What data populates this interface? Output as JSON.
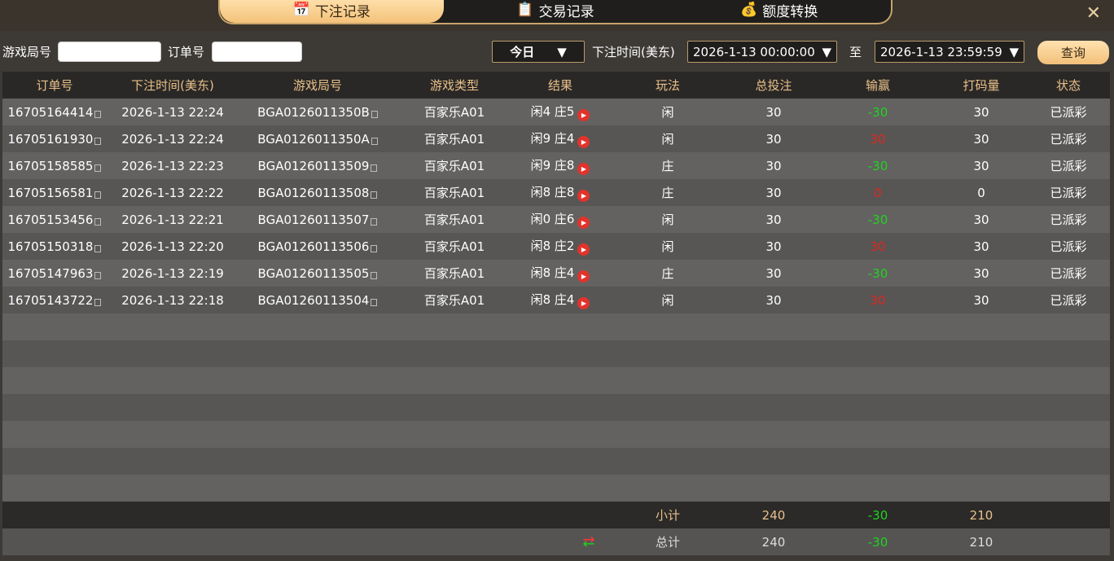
{
  "tabs": [
    {
      "label": "下注记录",
      "icon": "calendar-icon",
      "active": true
    },
    {
      "label": "交易记录",
      "icon": "clipboard-icon"
    },
    {
      "label": "额度转换",
      "icon": "coins-icon"
    }
  ],
  "close_label": "✕",
  "filters": {
    "round_label": "游戏局号",
    "round_value": "",
    "order_label": "订单号",
    "order_value": "",
    "range": "今日",
    "time_label": "下注时间(美东)",
    "start": "2026-1-13 00:00:00",
    "to": "至",
    "end": "2026-1-13 23:59:59",
    "query": "查询"
  },
  "headers": [
    "订单号",
    "下注时间(美东)",
    "游戏局号",
    "游戏类型",
    "结果",
    "玩法",
    "总投注",
    "输赢",
    "打码量",
    "状态"
  ],
  "rows": [
    [
      "16705164414",
      "2026-1-13 22:24",
      "BGA0126011350B",
      "百家乐A01",
      "闲4 庄5",
      "闲",
      "30",
      "-30",
      "30",
      "已派彩"
    ],
    [
      "16705161930",
      "2026-1-13 22:24",
      "BGA0126011350A",
      "百家乐A01",
      "闲9 庄4",
      "闲",
      "30",
      "30",
      "30",
      "已派彩"
    ],
    [
      "16705158585",
      "2026-1-13 22:23",
      "BGA01260113509",
      "百家乐A01",
      "闲9 庄8",
      "庄",
      "30",
      "-30",
      "30",
      "已派彩"
    ],
    [
      "16705156581",
      "2026-1-13 22:22",
      "BGA01260113508",
      "百家乐A01",
      "闲8 庄8",
      "庄",
      "30",
      "0",
      "0",
      "已派彩"
    ],
    [
      "16705153456",
      "2026-1-13 22:21",
      "BGA01260113507",
      "百家乐A01",
      "闲0 庄6",
      "闲",
      "30",
      "-30",
      "30",
      "已派彩"
    ],
    [
      "16705150318",
      "2026-1-13 22:20",
      "BGA01260113506",
      "百家乐A01",
      "闲8 庄2",
      "闲",
      "30",
      "30",
      "30",
      "已派彩"
    ],
    [
      "16705147963",
      "2026-1-13 22:19",
      "BGA01260113505",
      "百家乐A01",
      "闲8 庄4",
      "庄",
      "30",
      "-30",
      "30",
      "已派彩"
    ],
    [
      "16705143722",
      "2026-1-13 22:18",
      "BGA01260113504",
      "百家乐A01",
      "闲8 庄4",
      "闲",
      "30",
      "30",
      "30",
      "已派彩"
    ]
  ],
  "subtotal": {
    "label": "小计",
    "bet": "240",
    "win": "-30",
    "valid": "210"
  },
  "total": {
    "label": "总计",
    "bet": "240",
    "win": "-30",
    "valid": "210"
  },
  "colors": {
    "loss": "#e0261d",
    "win": "#1fd41f",
    "accent": "#f4c27a"
  }
}
